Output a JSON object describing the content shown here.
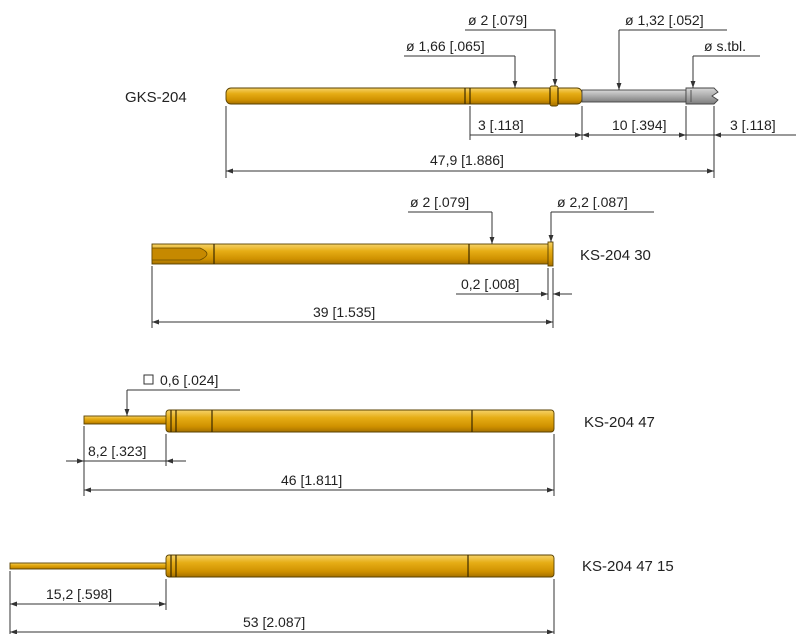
{
  "parts": [
    {
      "name": "GKS-204",
      "dimensions": [
        "ø 2 [.079]",
        "ø 1,32 [.052]",
        "ø 1,66 [.065]",
        "ø s.tbl.",
        "3 [.118]",
        "10 [.394]",
        "3 [.118]",
        "47,9 [1.886]"
      ]
    },
    {
      "name": "KS-204 30",
      "dimensions": [
        "ø 2 [.079]",
        "ø 2,2 [.087]",
        "0,2 [.008]",
        "39 [1.535]"
      ]
    },
    {
      "name": "KS-204 47",
      "dimensions": [
        "0,6 [.024]",
        "8,2 [.323]",
        "46 [1.811]"
      ]
    },
    {
      "name": "KS-204 47 15",
      "dimensions": [
        "15,2 [.598]",
        "53 [2.087]"
      ]
    }
  ],
  "colors": {
    "gold": "#e0a100",
    "steel": "#a6a6a6",
    "line": "#333333"
  }
}
